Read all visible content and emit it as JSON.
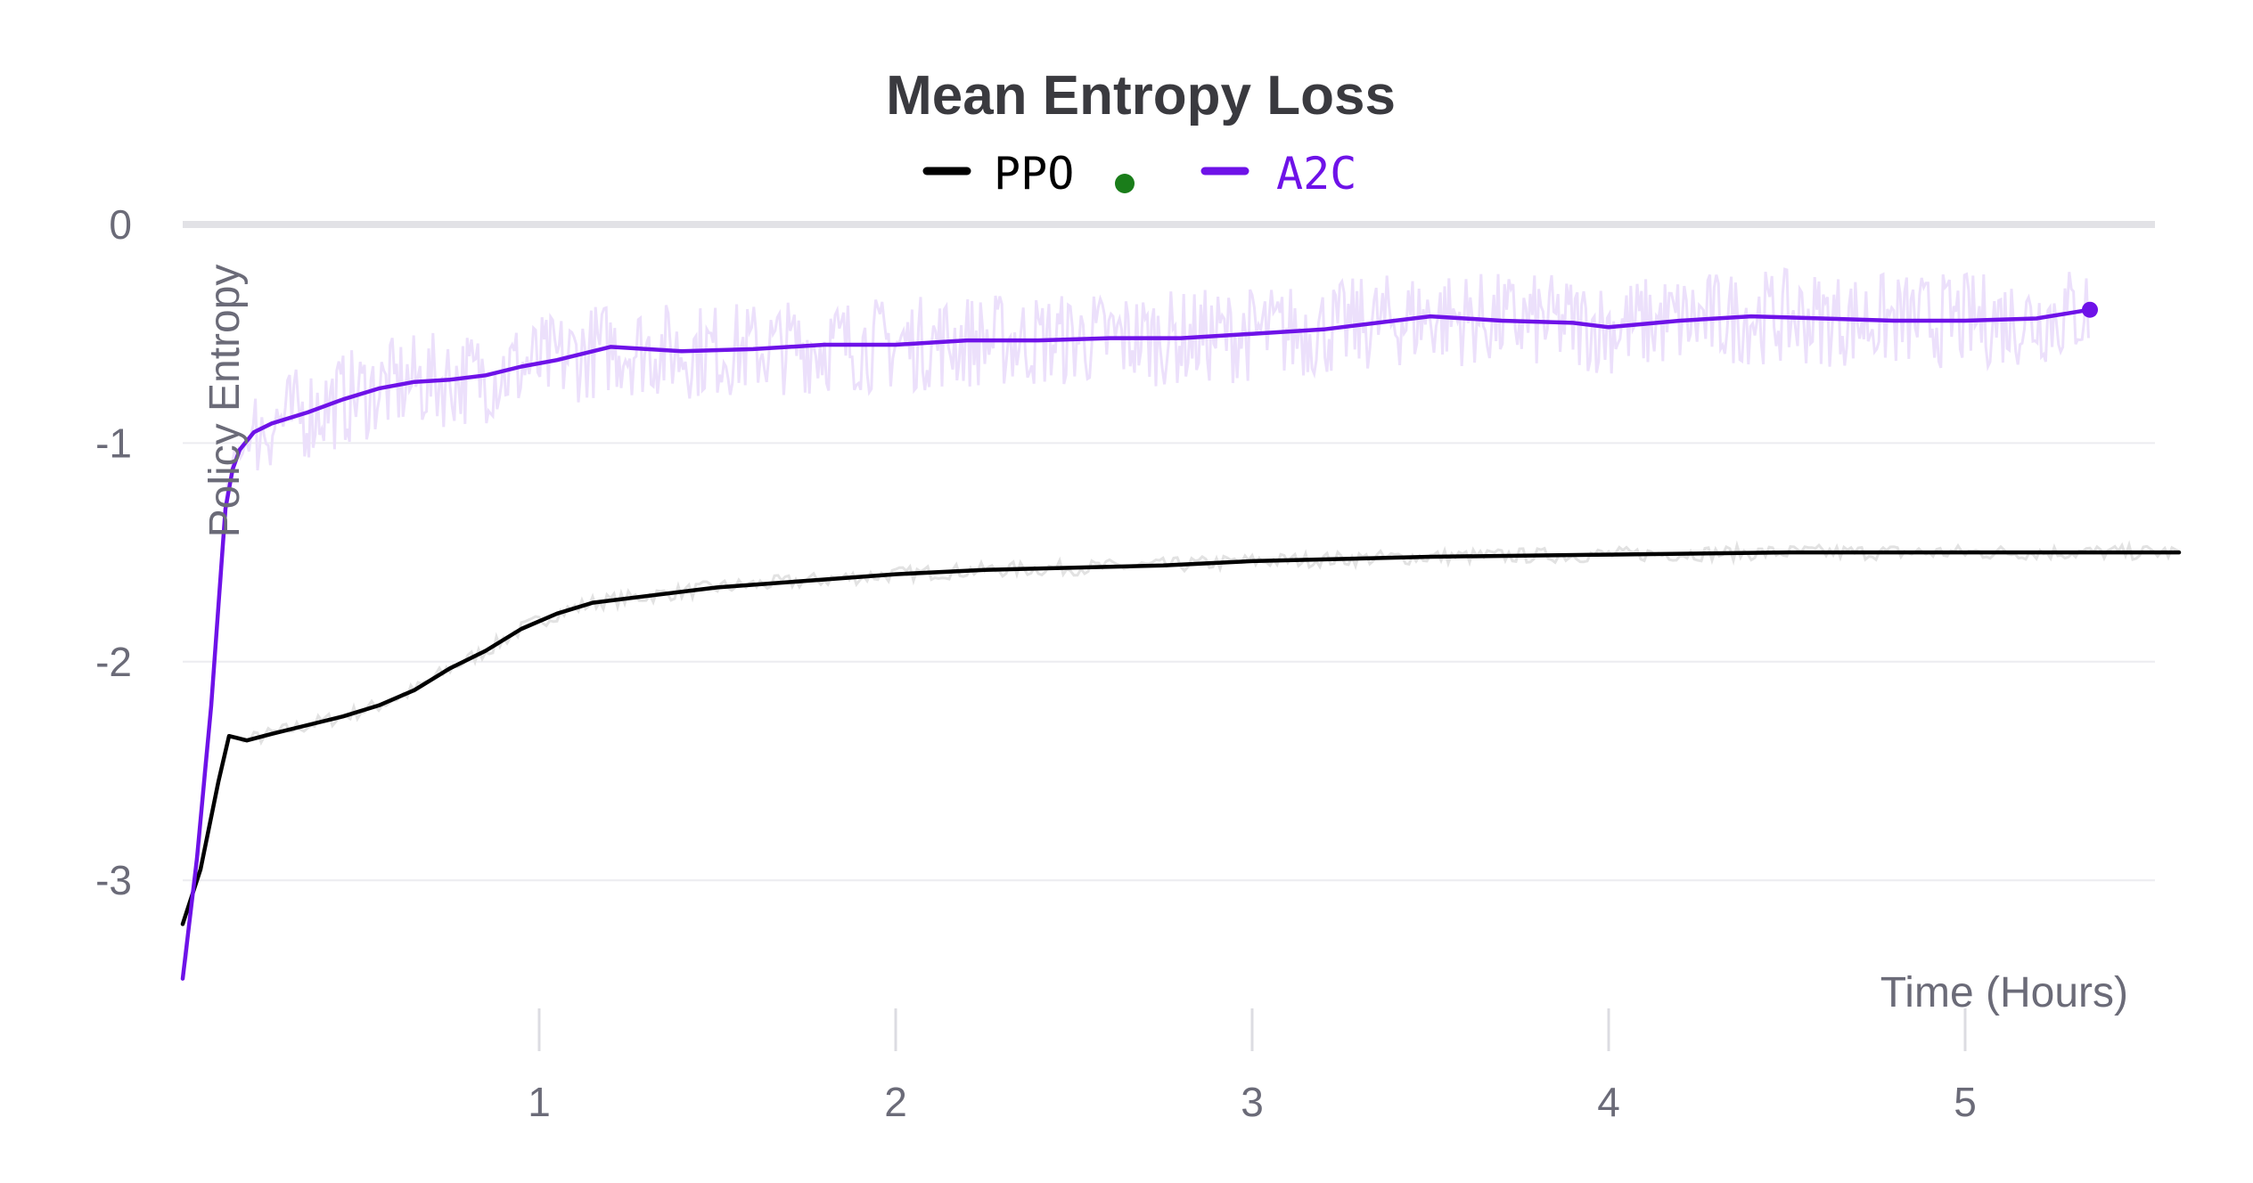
{
  "chart_data": {
    "type": "line",
    "title": "Mean Entropy Loss",
    "xlabel": "Time (Hours)",
    "ylabel": "Policy Entropy",
    "xlim": [
      0,
      5.6
    ],
    "ylim": [
      -3.7,
      0
    ],
    "x_ticks": [
      1,
      2,
      3,
      4,
      5
    ],
    "y_ticks": [
      0,
      -1,
      -2,
      -3
    ],
    "x_tick_labels": [
      "1",
      "2",
      "3",
      "4",
      "5"
    ],
    "y_tick_labels": [
      "0",
      "-1",
      "-2",
      "-3"
    ],
    "grid": true,
    "legend_position": "top-center",
    "series": [
      {
        "name": "PPO",
        "color": "#000000",
        "raw_color": "#e2e2e2",
        "status_dot_color": "#1a7d1a",
        "x": [
          0,
          0.05,
          0.1,
          0.13,
          0.18,
          0.25,
          0.35,
          0.45,
          0.55,
          0.65,
          0.75,
          0.85,
          0.95,
          1.05,
          1.15,
          1.3,
          1.5,
          1.75,
          2.0,
          2.25,
          2.5,
          2.75,
          3.0,
          3.5,
          4.0,
          4.5,
          5.0,
          5.6
        ],
        "y": [
          -3.2,
          -2.95,
          -2.55,
          -2.34,
          -2.36,
          -2.33,
          -2.29,
          -2.25,
          -2.2,
          -2.13,
          -2.03,
          -1.95,
          -1.85,
          -1.78,
          -1.73,
          -1.7,
          -1.66,
          -1.63,
          -1.6,
          -1.58,
          -1.57,
          -1.56,
          -1.54,
          -1.52,
          -1.51,
          -1.5,
          -1.5,
          -1.5
        ]
      },
      {
        "name": "A2C",
        "color": "#6e12e8",
        "raw_color": "#ece0fb",
        "x": [
          0,
          0.04,
          0.08,
          0.1,
          0.12,
          0.14,
          0.16,
          0.2,
          0.25,
          0.35,
          0.45,
          0.55,
          0.65,
          0.75,
          0.85,
          0.95,
          1.05,
          1.2,
          1.4,
          1.6,
          1.8,
          2.0,
          2.2,
          2.4,
          2.6,
          2.8,
          3.0,
          3.2,
          3.5,
          3.7,
          3.9,
          4.0,
          4.2,
          4.4,
          4.6,
          4.8,
          5.0,
          5.2,
          5.35
        ],
        "y": [
          -3.45,
          -2.9,
          -2.2,
          -1.75,
          -1.3,
          -1.12,
          -1.03,
          -0.95,
          -0.91,
          -0.86,
          -0.8,
          -0.75,
          -0.72,
          -0.71,
          -0.69,
          -0.65,
          -0.62,
          -0.56,
          -0.58,
          -0.57,
          -0.55,
          -0.55,
          -0.53,
          -0.53,
          -0.52,
          -0.52,
          -0.5,
          -0.48,
          -0.42,
          -0.44,
          -0.45,
          -0.47,
          -0.44,
          -0.42,
          -0.43,
          -0.44,
          -0.44,
          -0.43,
          -0.39
        ]
      }
    ]
  }
}
